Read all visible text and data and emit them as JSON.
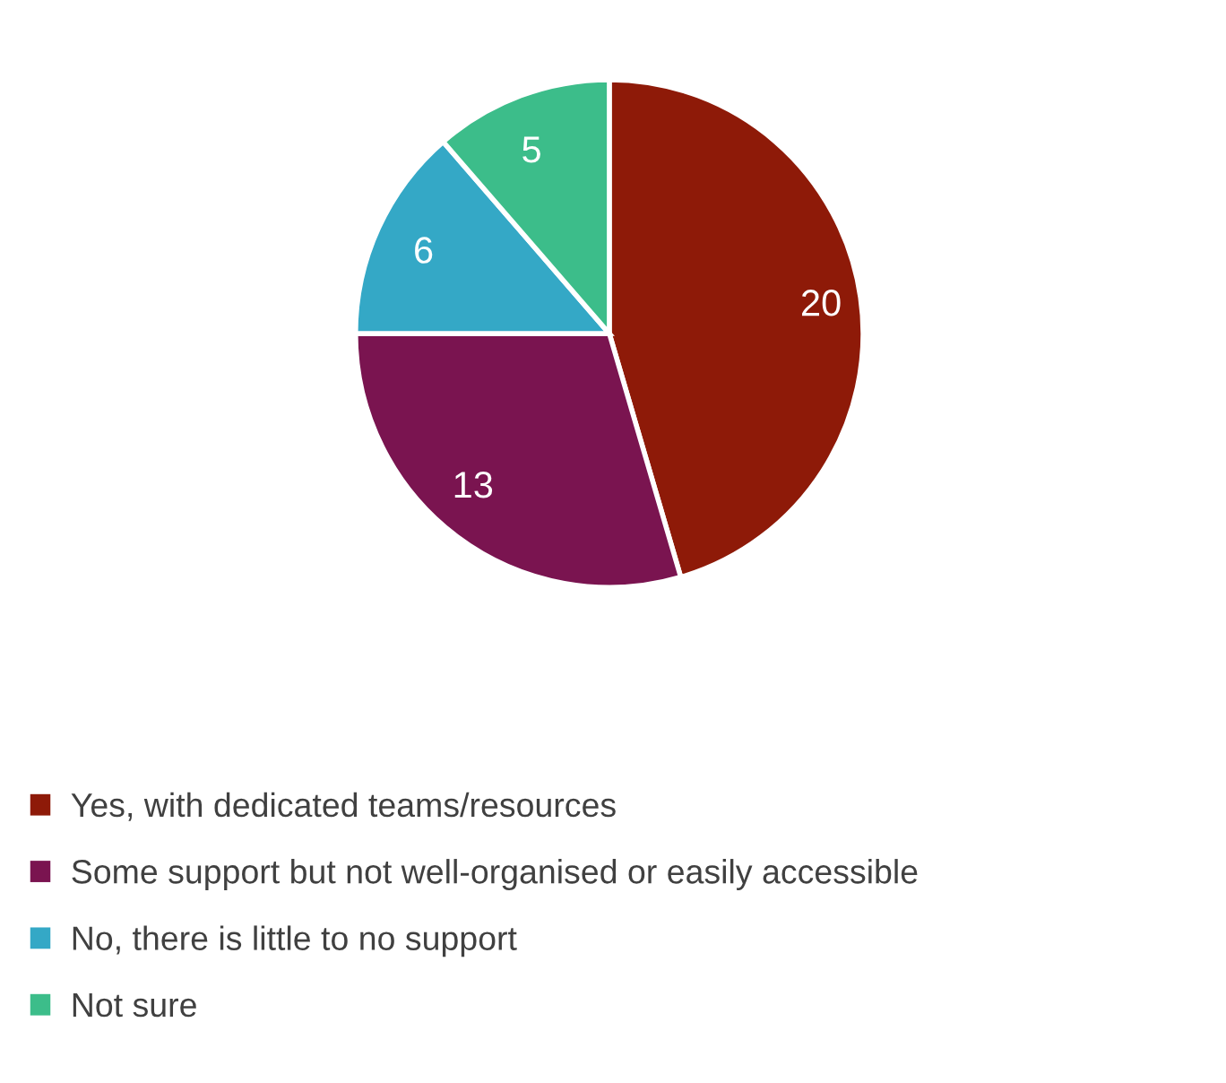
{
  "chart_data": {
    "type": "pie",
    "categories": [
      "Yes, with dedicated teams/resources",
      "Some support but not well-organised or easily accessible",
      "No, there is little to no support",
      "Not sure"
    ],
    "values": [
      20,
      13,
      6,
      5
    ],
    "colors": [
      "#8e1a08",
      "#7a1450",
      "#34a8c6",
      "#3cbd8a"
    ],
    "data_labels": true,
    "legend": "bottom"
  }
}
